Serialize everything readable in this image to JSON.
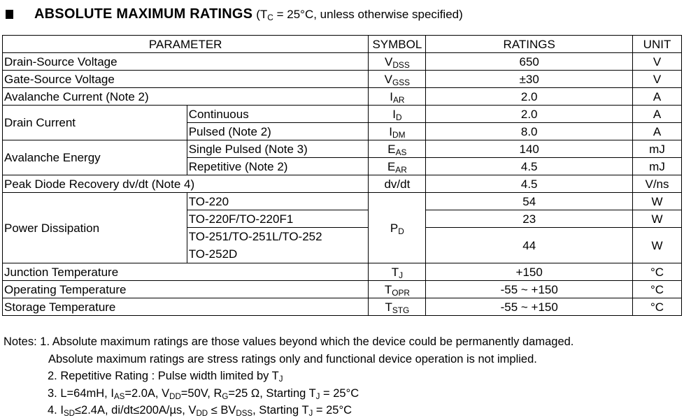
{
  "heading": {
    "title": "ABSOLUTE MAXIMUM RATINGS",
    "cond_pre": "(T",
    "cond_sub": "C",
    "cond_post": " = 25°C, unless otherwise specified)"
  },
  "columns": [
    "PARAMETER",
    "SYMBOL",
    "RATINGS",
    "UNIT"
  ],
  "rows": {
    "vdss": {
      "param": "Drain-Source Voltage",
      "sym": "V",
      "sub": "DSS",
      "rating": "650",
      "unit": "V"
    },
    "vgss": {
      "param": "Gate-Source Voltage",
      "sym": "V",
      "sub": "GSS",
      "rating": "±30",
      "unit": "V"
    },
    "iar": {
      "param": "Avalanche Current (Note 2)",
      "sym": "I",
      "sub": "AR",
      "rating": "2.0",
      "unit": "A"
    },
    "drain": {
      "param": "Drain Current",
      "cont": {
        "cond": "Continuous",
        "sym": "I",
        "sub": "D",
        "rating": "2.0",
        "unit": "A"
      },
      "puls": {
        "cond": "Pulsed (Note 2)",
        "sym": "I",
        "sub": "DM",
        "rating": "8.0",
        "unit": "A"
      }
    },
    "aval": {
      "param": "Avalanche Energy",
      "single": {
        "cond": "Single Pulsed (Note 3)",
        "sym": "E",
        "sub": "AS",
        "rating": "140",
        "unit": "mJ"
      },
      "rep": {
        "cond": "Repetitive (Note 2)",
        "sym": "E",
        "sub": "AR",
        "rating": "4.5",
        "unit": "mJ"
      }
    },
    "dvdt": {
      "param": "Peak Diode Recovery dv/dt (Note 4)",
      "sym": "dv/dt",
      "rating": "4.5",
      "unit": "V/ns"
    },
    "pd": {
      "param": "Power Dissipation",
      "sym": "P",
      "sub": "D",
      "a": {
        "cond": "TO-220",
        "rating": "54",
        "unit": "W"
      },
      "b": {
        "cond": "TO-220F/TO-220F1",
        "rating": "23",
        "unit": "W"
      },
      "c": {
        "cond1": "TO-251/TO-251L/TO-252",
        "cond2": "TO-252D",
        "rating": "44",
        "unit": "W"
      }
    },
    "tj": {
      "param": "Junction Temperature",
      "sym": "T",
      "sub": "J",
      "rating": "+150",
      "unit": "°C"
    },
    "topr": {
      "param": "Operating Temperature",
      "sym": "T",
      "sub": "OPR",
      "rating": "-55 ~ +150",
      "unit": "°C"
    },
    "tstg": {
      "param": "Storage Temperature",
      "sym": "T",
      "sub": "STG",
      "rating": "-55 ~ +150",
      "unit": "°C"
    }
  },
  "notes": {
    "label": "Notes: ",
    "n1a": "1. Absolute maximum ratings are those values beyond which the device could be permanently damaged.",
    "n1b": "Absolute maximum ratings are stress ratings only and functional device operation is not implied.",
    "n2": "2. Repetitive Rating : Pulse width limited by T",
    "n2sub": "J",
    "n3": [
      "3. L=64mH, I",
      "AS",
      "=2.0A, V",
      "DD",
      "=50V, R",
      "G",
      "=25 Ω, Starting T",
      "J",
      " = 25°C"
    ],
    "n4": [
      "4. I",
      "SD",
      "≤2.4A, di/dt≤200A/µs, V",
      "DD",
      " ≤ BV",
      "DSS",
      ", Starting T",
      "J",
      " = 25°C"
    ]
  }
}
